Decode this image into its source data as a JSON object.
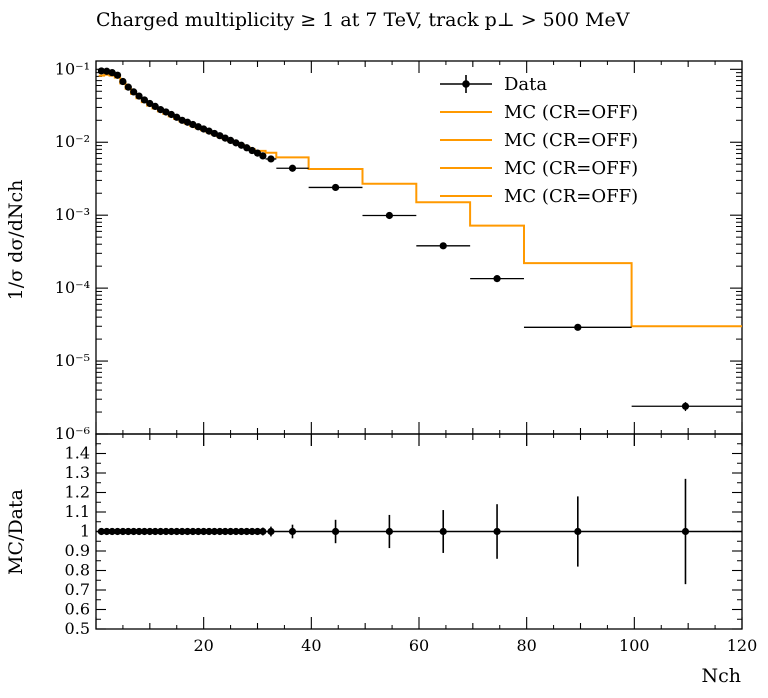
{
  "chart_data": {
    "type": "line",
    "title": "Charged multiplicity ≥ 1 at 7 TeV, track p⊥ > 500 MeV",
    "ylabel_main": "1/σ dσ/dNch",
    "ylabel_ratio": "MC/Data",
    "xlabel": "Nch",
    "xlim": [
      0,
      120
    ],
    "xticks": [
      20,
      40,
      60,
      80,
      100,
      120
    ],
    "main": {
      "yscale": "log",
      "ylim": [
        1e-06,
        0.13
      ],
      "ytick_labels": [
        "10⁻¹",
        "10⁻²",
        "10⁻³",
        "10⁻⁴",
        "10⁻⁵",
        "10⁻⁶"
      ],
      "ytick_values": [
        0.1,
        0.01,
        0.001,
        0.0001,
        1e-05,
        1e-06
      ]
    },
    "ratio": {
      "ylim": [
        0.5,
        1.5
      ],
      "ytick_labels": [
        "0.5",
        "0.6",
        "0.7",
        "0.8",
        "0.9",
        "1",
        "1.1",
        "1.2",
        "1.3",
        "1.4"
      ],
      "ytick_values": [
        0.5,
        0.6,
        0.7,
        0.8,
        0.9,
        1.0,
        1.1,
        1.2,
        1.3,
        1.4
      ]
    },
    "legend": {
      "position": "top-right",
      "entries": [
        "Data",
        "MC (CR=OFF)",
        "MC (CR=OFF)",
        "MC (CR=OFF)",
        "MC (CR=OFF)"
      ]
    },
    "data_series": {
      "name": "Data",
      "color": "#000000",
      "points": [
        {
          "x": 1,
          "y": 0.095,
          "xlo": 0.5,
          "xhi": 1.5,
          "rel_err": 0.005
        },
        {
          "x": 2,
          "y": 0.094,
          "xlo": 1.5,
          "xhi": 2.5,
          "rel_err": 0.005
        },
        {
          "x": 3,
          "y": 0.09,
          "xlo": 2.5,
          "xhi": 3.5,
          "rel_err": 0.005
        },
        {
          "x": 4,
          "y": 0.083,
          "xlo": 3.5,
          "xhi": 4.5,
          "rel_err": 0.005
        },
        {
          "x": 5,
          "y": 0.068,
          "xlo": 4.5,
          "xhi": 5.5,
          "rel_err": 0.005
        },
        {
          "x": 6,
          "y": 0.057,
          "xlo": 5.5,
          "xhi": 6.5,
          "rel_err": 0.005
        },
        {
          "x": 7,
          "y": 0.049,
          "xlo": 6.5,
          "xhi": 7.5,
          "rel_err": 0.005
        },
        {
          "x": 8,
          "y": 0.043,
          "xlo": 7.5,
          "xhi": 8.5,
          "rel_err": 0.005
        },
        {
          "x": 9,
          "y": 0.038,
          "xlo": 8.5,
          "xhi": 9.5,
          "rel_err": 0.005
        },
        {
          "x": 10,
          "y": 0.034,
          "xlo": 9.5,
          "xhi": 10.5,
          "rel_err": 0.005
        },
        {
          "x": 11,
          "y": 0.031,
          "xlo": 10.5,
          "xhi": 11.5,
          "rel_err": 0.005
        },
        {
          "x": 12,
          "y": 0.028,
          "xlo": 11.5,
          "xhi": 12.5,
          "rel_err": 0.005
        },
        {
          "x": 13,
          "y": 0.026,
          "xlo": 12.5,
          "xhi": 13.5,
          "rel_err": 0.005
        },
        {
          "x": 14,
          "y": 0.024,
          "xlo": 13.5,
          "xhi": 14.5,
          "rel_err": 0.005
        },
        {
          "x": 15,
          "y": 0.022,
          "xlo": 14.5,
          "xhi": 15.5,
          "rel_err": 0.005
        },
        {
          "x": 16,
          "y": 0.02,
          "xlo": 15.5,
          "xhi": 16.5,
          "rel_err": 0.005
        },
        {
          "x": 17,
          "y": 0.0188,
          "xlo": 16.5,
          "xhi": 17.5,
          "rel_err": 0.005
        },
        {
          "x": 18,
          "y": 0.0175,
          "xlo": 17.5,
          "xhi": 18.5,
          "rel_err": 0.005
        },
        {
          "x": 19,
          "y": 0.0163,
          "xlo": 18.5,
          "xhi": 19.5,
          "rel_err": 0.005
        },
        {
          "x": 20,
          "y": 0.0152,
          "xlo": 19.5,
          "xhi": 20.5,
          "rel_err": 0.005
        },
        {
          "x": 21,
          "y": 0.0142,
          "xlo": 20.5,
          "xhi": 21.5,
          "rel_err": 0.005
        },
        {
          "x": 22,
          "y": 0.0132,
          "xlo": 21.5,
          "xhi": 22.5,
          "rel_err": 0.005
        },
        {
          "x": 23,
          "y": 0.0123,
          "xlo": 22.5,
          "xhi": 23.5,
          "rel_err": 0.005
        },
        {
          "x": 24,
          "y": 0.0114,
          "xlo": 23.5,
          "xhi": 24.5,
          "rel_err": 0.005
        },
        {
          "x": 25,
          "y": 0.0106,
          "xlo": 24.5,
          "xhi": 25.5,
          "rel_err": 0.005
        },
        {
          "x": 26,
          "y": 0.0098,
          "xlo": 25.5,
          "xhi": 26.5,
          "rel_err": 0.005
        },
        {
          "x": 27,
          "y": 0.0091,
          "xlo": 26.5,
          "xhi": 27.5,
          "rel_err": 0.006
        },
        {
          "x": 28,
          "y": 0.0084,
          "xlo": 27.5,
          "xhi": 28.5,
          "rel_err": 0.006
        },
        {
          "x": 29,
          "y": 0.0077,
          "xlo": 28.5,
          "xhi": 29.5,
          "rel_err": 0.006
        },
        {
          "x": 30,
          "y": 0.0071,
          "xlo": 29.5,
          "xhi": 30.5,
          "rel_err": 0.008
        },
        {
          "x": 31,
          "y": 0.0065,
          "xlo": 30.5,
          "xhi": 31.5,
          "rel_err": 0.01
        },
        {
          "x": 32.5,
          "y": 0.0059,
          "xlo": 31.5,
          "xhi": 33.5,
          "rel_err": 0.015
        },
        {
          "x": 36.5,
          "y": 0.0044,
          "xlo": 33.5,
          "xhi": 39.5,
          "rel_err": 0.02
        },
        {
          "x": 44.5,
          "y": 0.0024,
          "xlo": 39.5,
          "xhi": 49.5,
          "rel_err": 0.03
        },
        {
          "x": 54.5,
          "y": 0.00099,
          "xlo": 49.5,
          "xhi": 59.5,
          "rel_err": 0.045
        },
        {
          "x": 64.5,
          "y": 0.00038,
          "xlo": 59.5,
          "xhi": 69.5,
          "rel_err": 0.06
        },
        {
          "x": 74.5,
          "y": 0.000135,
          "xlo": 69.5,
          "xhi": 79.5,
          "rel_err": 0.075
        },
        {
          "x": 89.5,
          "y": 2.9e-05,
          "xlo": 79.5,
          "xhi": 99.5,
          "rel_err": 0.09
        },
        {
          "x": 109.5,
          "y": 2.4e-06,
          "xlo": 99.5,
          "xhi": 120,
          "rel_err": 0.14
        }
      ],
      "ratio_errors": [
        0.006,
        0.006,
        0.006,
        0.006,
        0.006,
        0.006,
        0.006,
        0.006,
        0.006,
        0.006,
        0.006,
        0.006,
        0.006,
        0.006,
        0.006,
        0.006,
        0.006,
        0.006,
        0.006,
        0.006,
        0.006,
        0.006,
        0.006,
        0.006,
        0.006,
        0.008,
        0.01,
        0.012,
        0.014,
        0.016,
        0.02,
        0.025,
        0.035,
        0.06,
        0.085,
        0.11,
        0.14,
        0.18,
        0.27
      ]
    },
    "mc_series": {
      "name": "MC (CR=OFF)",
      "color": "#ff9900",
      "step_edges": [
        0.5,
        1.5,
        2.5,
        3.5,
        4.5,
        5.5,
        6.5,
        7.5,
        8.5,
        9.5,
        10.5,
        11.5,
        12.5,
        13.5,
        14.5,
        15.5,
        16.5,
        17.5,
        18.5,
        19.5,
        20.5,
        21.5,
        22.5,
        23.5,
        24.5,
        25.5,
        26.5,
        27.5,
        28.5,
        29.5,
        31.5,
        33.5,
        39.5,
        49.5,
        59.5,
        69.5,
        79.5,
        99.5,
        120
      ],
      "step_values": [
        0.082,
        0.084,
        0.082,
        0.077,
        0.064,
        0.054,
        0.046,
        0.04,
        0.0355,
        0.0318,
        0.029,
        0.0265,
        0.0245,
        0.0226,
        0.0208,
        0.0193,
        0.018,
        0.0167,
        0.0156,
        0.0146,
        0.0137,
        0.0128,
        0.012,
        0.0112,
        0.0105,
        0.0098,
        0.0092,
        0.0086,
        0.008,
        0.0076,
        0.0072,
        0.0062,
        0.0043,
        0.0027,
        0.0015,
        0.00072,
        0.00022,
        3e-05
      ],
      "ratio_value": 1.0
    }
  }
}
